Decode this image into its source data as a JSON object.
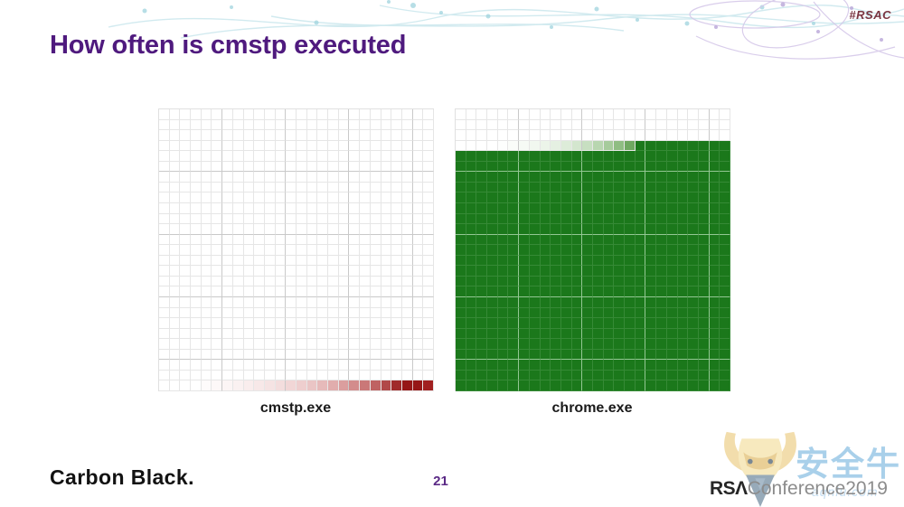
{
  "slide": {
    "hashtag": "#RSAC",
    "title": "How often is cmstp executed",
    "page_number": "21",
    "footer_brand": "Carbon Black.",
    "conference_logo": {
      "rsa": "RSΛ",
      "rest": "Conference2019"
    },
    "watermark": {
      "cn": "安全牛",
      "url": "aqniu.com"
    }
  },
  "chart_data": [
    {
      "type": "heatmap",
      "label": "cmstp.exe",
      "title": "cmstp.exe execution frequency waffle grid",
      "rows": 27,
      "cols": 26,
      "approx_filled_fraction": 0.03,
      "description": "Nearly empty 26x27 waffle grid; only the bottom row shows a gradient from white to dark red at the right edge, indicating cmstp.exe is executed very rarely.",
      "empty_color": "#ffffff",
      "fill_color": "#961717",
      "filled_from_row": null,
      "major_every": 6,
      "grid_minor": "#e6e6e6",
      "grid_major": "#c9c9c9",
      "grid_filled_minor": "#e6e6e6",
      "grid_filled_major": "#d8bcbc",
      "gradient_row": {
        "row": 26,
        "colors": [
          "#ffffff",
          "#ffffff",
          "#ffffff",
          "#ffffff",
          "#fefbfb",
          "#fdf8f8",
          "#fcf5f5",
          "#faf1f1",
          "#f9eded",
          "#f7e8e8",
          "#f5e3e3",
          "#f3dddd",
          "#f1d6d6",
          "#eecece",
          "#eac5c5",
          "#e6baba",
          "#e1adad",
          "#db9e9e",
          "#d38c8c",
          "#ca7878",
          "#bf6262",
          "#b14848",
          "#a02a2a",
          "#961717",
          "#961717",
          "#a12020"
        ]
      }
    },
    {
      "type": "heatmap",
      "label": "chrome.exe",
      "title": "chrome.exe execution frequency waffle grid",
      "rows": 27,
      "cols": 26,
      "approx_filled_fraction": 0.85,
      "description": "Mostly full 26x27 waffle grid; top three rows empty, fourth row shows gradient from white to green, all rows below solid dark green, indicating chrome.exe is executed very frequently.",
      "empty_color": "#ffffff",
      "fill_color": "#1b781b",
      "filled_from_row": 4,
      "major_every": 6,
      "grid_minor": "#e6e6e6",
      "grid_major": "#c9c9c9",
      "grid_filled_minor": "#368a36",
      "grid_filled_major": "#93c793",
      "gradient_row": {
        "row": 3,
        "colors": [
          "#ffffff",
          "#ffffff",
          "#ffffff",
          "#ffffff",
          "#fdfefd",
          "#fafcf9",
          "#f6faf5",
          "#f1f7ef",
          "#ecf4e9",
          "#e5f0e2",
          "#ddecd9",
          "#d3e6ce",
          "#c7dfc1",
          "#b8d6b0",
          "#a6cb9c",
          "#8fbd83",
          "#6fa861",
          "#1b781b",
          "#1b781b",
          "#1b781b",
          "#1b781b",
          "#1b781b",
          "#1b781b",
          "#1b781b",
          "#1b781b",
          "#1b781b"
        ]
      }
    }
  ]
}
